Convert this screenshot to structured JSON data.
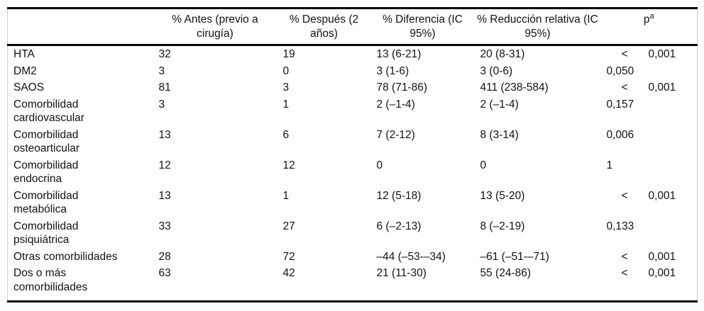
{
  "table": {
    "header": {
      "cols": [
        {
          "l1": "% Antes (previo a",
          "l2": "cirugía)"
        },
        {
          "l1": "% Después (2",
          "l2": "años)"
        },
        {
          "l1": "% Diferencia (IC",
          "l2": "95%)"
        },
        {
          "l1": "% Reducción relativa (IC",
          "l2": "95%)"
        }
      ],
      "p": {
        "base": "p",
        "sup": "a"
      }
    },
    "rows": [
      {
        "label": "HTA",
        "antes": "32",
        "despues": "19",
        "dif": "13 (6-21)",
        "red": "20 (8-31)",
        "p_lt": "<",
        "p": "0,001"
      },
      {
        "label": "DM2",
        "antes": "3",
        "despues": "0",
        "dif": "3 (1-6)",
        "red": "3 (0-6)",
        "p": "0,050"
      },
      {
        "label": "SAOS",
        "antes": "81",
        "despues": "3",
        "dif": "78 (71-86)",
        "red": "411 (238-584)",
        "p_lt": "<",
        "p": "0,001"
      },
      {
        "label": "Comorbilidad cardiovascular",
        "antes": "3",
        "despues": "1",
        "dif": "2 (–1-4)",
        "red": "2 (–1-4)",
        "p": "0,157"
      },
      {
        "label": "Comorbilidad osteoarticular",
        "antes": "13",
        "despues": "6",
        "dif": "7 (2-12)",
        "red": "8 (3-14)",
        "p": "0,006"
      },
      {
        "label": "Comorbilidad endocrina",
        "antes": "12",
        "despues": "12",
        "dif": "0",
        "red": "0",
        "p": "1"
      },
      {
        "label": "Comorbilidad metabólica",
        "antes": "13",
        "despues": "1",
        "dif": "12 (5-18)",
        "red": "13 (5-20)",
        "p_lt": "<",
        "p": "0,001"
      },
      {
        "label": "Comorbilidad psiquiátrica",
        "antes": "33",
        "despues": "27",
        "dif": "6 (–2-13)",
        "red": "8 (–2-19)",
        "p": "0,133"
      },
      {
        "label": "Otras comorbilidades",
        "antes": "28",
        "despues": "72",
        "dif": "–44 (–53-–34)",
        "red": "–61 (–51-–71)",
        "p_lt": "<",
        "p": "0,001"
      },
      {
        "label": "Dos o más comorbilidades",
        "antes": "63",
        "despues": "42",
        "dif": "21 (11-30)",
        "red": "55 (24-86)",
        "p_lt": "<",
        "p": "0,001"
      }
    ]
  }
}
